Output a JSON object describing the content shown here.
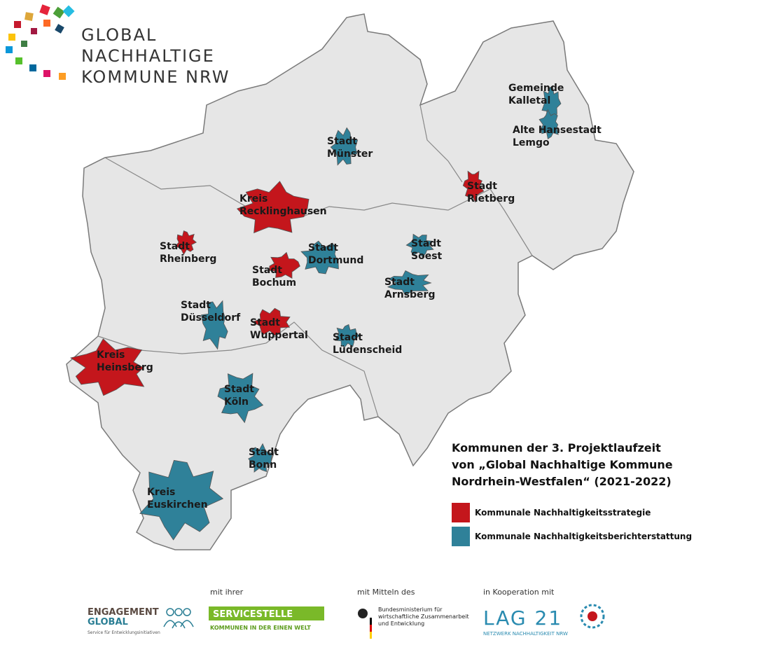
{
  "logo": {
    "lines": [
      "GLOBAL",
      "NACHHALTIGE",
      "KOMMUNE NRW"
    ]
  },
  "map": {
    "regions": [
      {
        "lines": [
          "Stadt",
          "Münster"
        ],
        "legend_item": 1
      },
      {
        "lines": [
          "Gemeinde",
          "Kalletal"
        ],
        "legend_item": 1
      },
      {
        "lines": [
          "Alte Hansestadt",
          "Lemgo"
        ],
        "legend_item": 1
      },
      {
        "lines": [
          "Stadt",
          "Rietberg"
        ],
        "legend_item": 0
      },
      {
        "lines": [
          "Kreis",
          "Recklinghausen"
        ],
        "legend_item": 0
      },
      {
        "lines": [
          "Stadt",
          "Rheinberg"
        ],
        "legend_item": 0
      },
      {
        "lines": [
          "Stadt",
          "Dortmund"
        ],
        "legend_item": 1
      },
      {
        "lines": [
          "Stadt",
          "Soest"
        ],
        "legend_item": 1
      },
      {
        "lines": [
          "Stadt",
          "Bochum"
        ],
        "legend_item": 0
      },
      {
        "lines": [
          "Stadt",
          "Arnsberg"
        ],
        "legend_item": 1
      },
      {
        "lines": [
          "Stadt",
          "Düsseldorf"
        ],
        "legend_item": 1
      },
      {
        "lines": [
          "Stadt",
          "Wuppertal"
        ],
        "legend_item": 0
      },
      {
        "lines": [
          "Stadt",
          "Lüdenscheid"
        ],
        "legend_item": 1
      },
      {
        "lines": [
          "Kreis",
          "Heinsberg"
        ],
        "legend_item": 0
      },
      {
        "lines": [
          "Stadt",
          "Köln"
        ],
        "legend_item": 1
      },
      {
        "lines": [
          "Stadt",
          "Bonn"
        ],
        "legend_item": 1
      },
      {
        "lines": [
          "Kreis",
          "Euskirchen"
        ],
        "legend_item": 1
      }
    ]
  },
  "legend": {
    "title": [
      "Kommunen der 3. Projektlaufzeit",
      "von „Global Nachhaltige Kommune",
      "Nordrhein-Westfalen“ (2021-2022)"
    ],
    "items": [
      {
        "label": "Kommunale Nachhaltigkeitsstrategie",
        "color": "#c4161c"
      },
      {
        "label": "Kommunale Nachhaltigkeitsberichterstattung",
        "color": "#2f8199"
      }
    ]
  },
  "footer": {
    "captions": [
      "mit ihrer",
      "mit Mitteln des",
      "in Kooperation mit"
    ],
    "engagement": [
      "ENGAGEMENT",
      "GLOBAL",
      "Service für Entwicklungsinitiativen"
    ],
    "servicestelle": [
      "SERVICESTELLE",
      "KOMMUNEN IN DER EINEN WELT"
    ],
    "bmz": [
      "Bundesministerium für",
      "wirtschaftliche Zusammenarbeit",
      "und Entwicklung"
    ],
    "lag": [
      "LAG 21",
      "NETZWERK NACHHALTIGKEIT NRW"
    ]
  }
}
